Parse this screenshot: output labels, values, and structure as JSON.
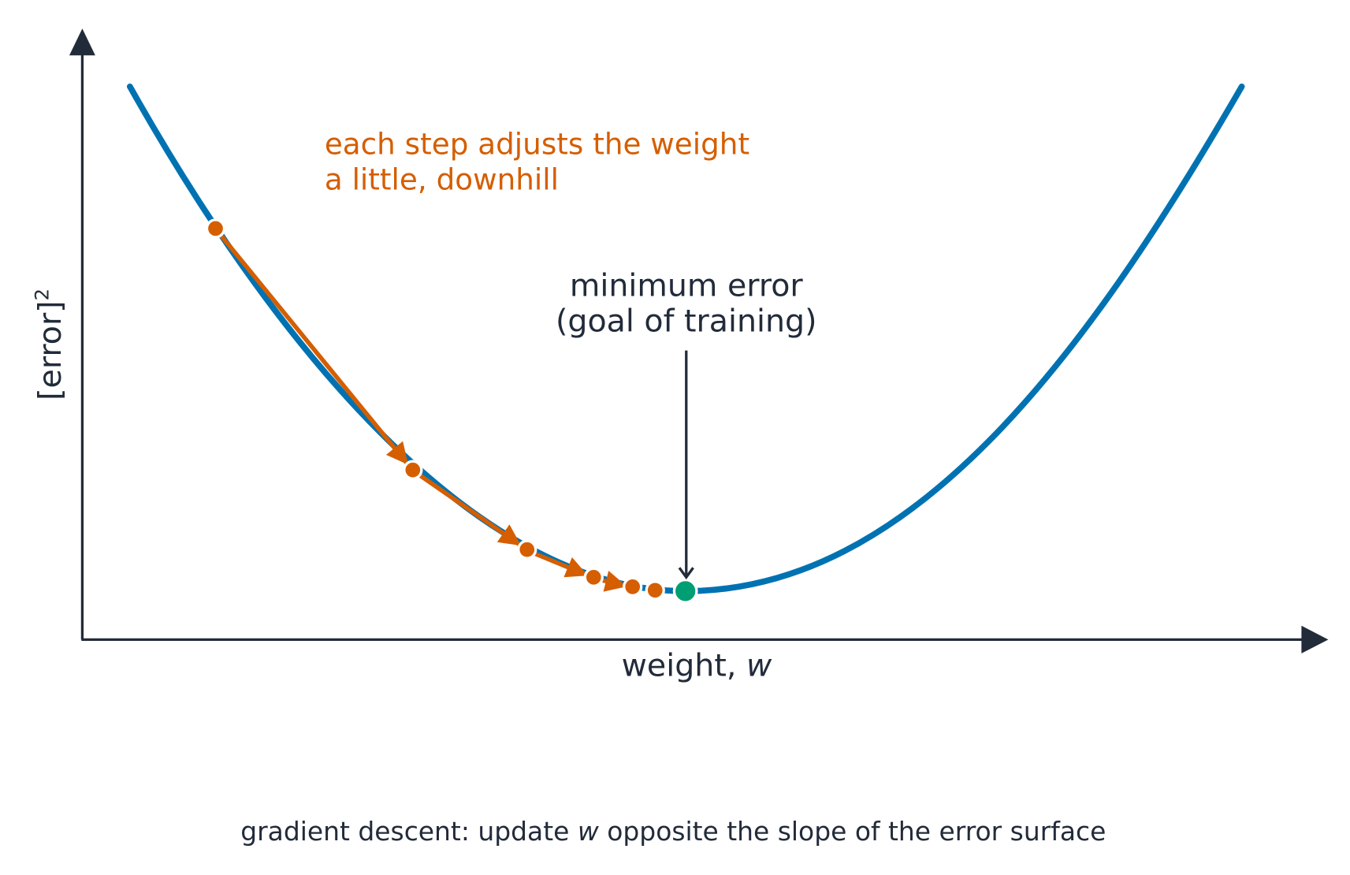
{
  "annotation": {
    "lines": [
      "each step adjusts the weight",
      "a little, downhill"
    ]
  },
  "minimum_label": {
    "lines": [
      "minimum error",
      "(goal of training)"
    ]
  },
  "y_axis": {
    "label": "[error]",
    "superscript": "2"
  },
  "x_axis": {
    "label": "weight, ",
    "variable": "w"
  },
  "caption": {
    "before": "gradient descent: update ",
    "variable": "w",
    "after": " opposite the slope of the error surface"
  }
}
